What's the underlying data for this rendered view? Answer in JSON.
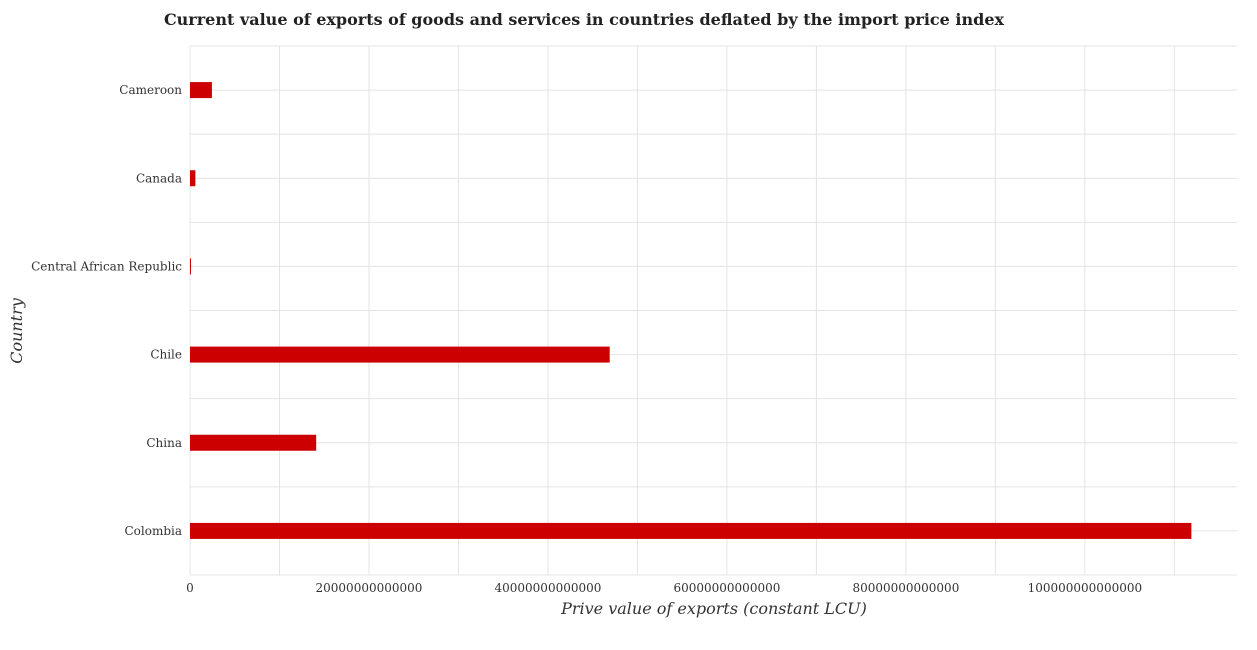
{
  "chart_data": {
    "type": "bar",
    "orientation": "horizontal",
    "title": "Current value of exports of goods and services in countries deflated by the import price index",
    "xlabel": "Prive value of exports (constant LCU)",
    "ylabel": "Country",
    "categories": [
      "Cameroon",
      "Canada",
      "Central African Republic",
      "Chile",
      "China",
      "Colombia"
    ],
    "values": [
      2450000000000,
      600000000000,
      50000000000,
      46900000000000,
      14100000000000,
      111900000000000
    ],
    "xlim": [
      0,
      117000000000000
    ],
    "xticks": [
      0,
      20000000000000,
      40000000000000,
      60000000000000,
      80000000000000,
      100000000000000
    ],
    "xtick_labels": [
      "0",
      "20000000000000",
      "40000000000000",
      "60000000000000",
      "80000000000000",
      "100000000000000"
    ],
    "grid": true,
    "bar_color": "#cc0000"
  }
}
